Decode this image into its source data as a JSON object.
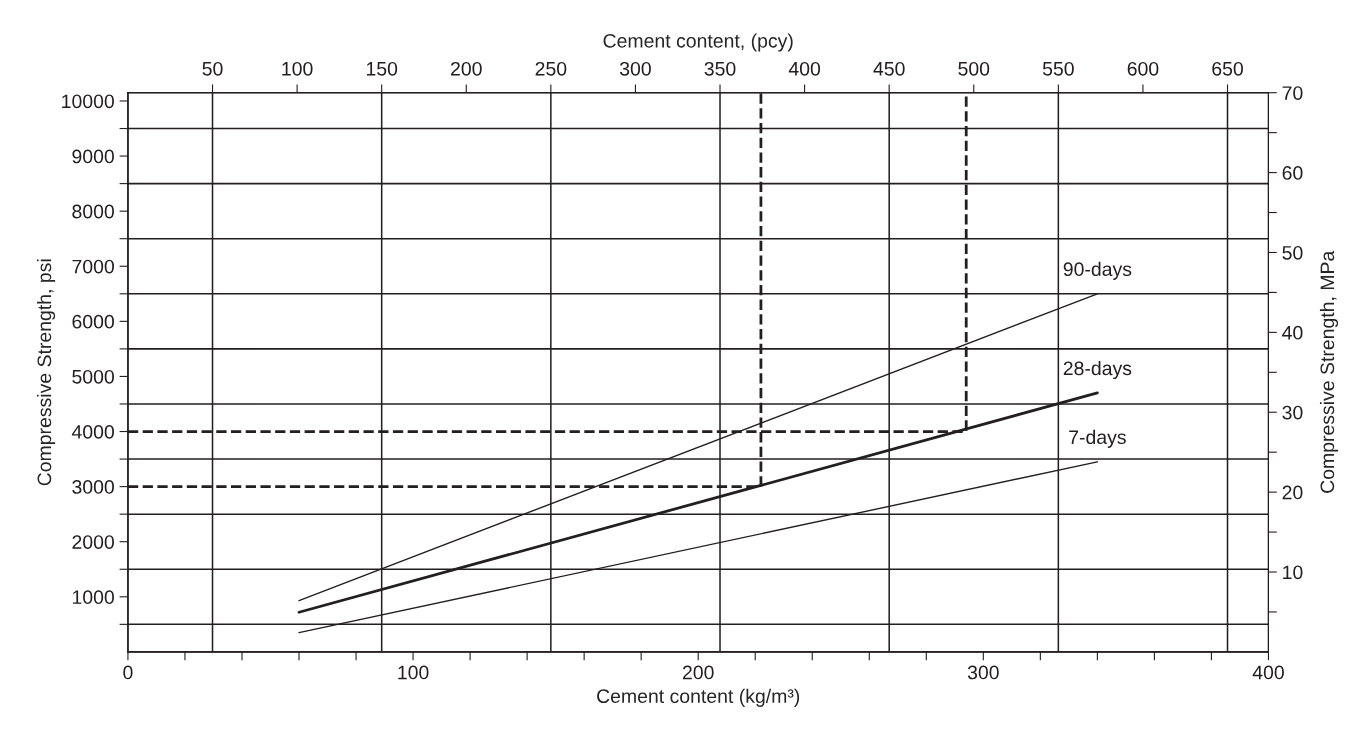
{
  "chart_data": {
    "type": "line",
    "xlabel": "Cement content (kg/m³)",
    "ylabel": "Compressive Strength, psi",
    "y2label": "Compressive Strength, MPa",
    "x2label": "Cement content, (pcy)",
    "series": [
      {
        "name": "90-days",
        "color": "#231f20",
        "x": [
          60,
          340
        ],
        "values": [
          930,
          6500
        ]
      },
      {
        "name": "28-days",
        "color": "#231f20",
        "x": [
          60,
          340
        ],
        "values": [
          720,
          4700
        ]
      },
      {
        "name": "7-days",
        "color": "#231f20",
        "x": [
          60,
          340
        ],
        "values": [
          350,
          3450
        ]
      },
      {
        "color": "#231f20",
        "line_style": "dashed",
        "x": [
          0,
          222,
          222
        ],
        "values": [
          3000,
          3000,
          10150
        ]
      },
      {
        "color": "#231f20",
        "line_style": "dashed",
        "x": [
          0,
          294,
          294
        ],
        "values": [
          4000,
          4000,
          10150
        ]
      }
    ],
    "xlim": [
      0,
      400
    ],
    "xticks": [
      0,
      {
        "value": 20,
        "label": null
      },
      {
        "value": 40,
        "label": null
      },
      {
        "value": 60,
        "label": null
      },
      {
        "value": 80,
        "label": null
      },
      100,
      {
        "value": 120,
        "label": null
      },
      {
        "value": 140,
        "label": null
      },
      {
        "value": 160,
        "label": null
      },
      {
        "value": 180,
        "label": null
      },
      200,
      {
        "value": 220,
        "label": null
      },
      {
        "value": 240,
        "label": null
      },
      {
        "value": 260,
        "label": null
      },
      {
        "value": 280,
        "label": null
      },
      300,
      {
        "value": 320,
        "label": null
      },
      {
        "value": 340,
        "label": null
      },
      {
        "value": 360,
        "label": null
      },
      {
        "value": 380,
        "label": null
      },
      400
    ],
    "ylim": [
      0,
      10150
    ],
    "yticks": [
      {
        "value": 500,
        "label": null
      },
      1000,
      {
        "value": 1500,
        "label": null
      },
      2000,
      {
        "value": 2500,
        "label": null
      },
      3000,
      {
        "value": 3500,
        "label": null
      },
      4000,
      {
        "value": 4500,
        "label": null
      },
      5000,
      {
        "value": 5500,
        "label": null
      },
      6000,
      {
        "value": 6500,
        "label": null
      },
      7000,
      {
        "value": 7500,
        "label": null
      },
      8000,
      {
        "value": 8500,
        "label": null
      },
      9000,
      {
        "value": 9500,
        "label": null
      },
      10000
    ],
    "y2lim": [
      0,
      70
    ],
    "y2ticks": [
      {
        "value": 5,
        "label": null
      },
      10,
      {
        "value": 15,
        "label": null
      },
      20,
      {
        "value": 25,
        "label": null
      },
      30,
      {
        "value": 35,
        "label": null
      },
      40,
      {
        "value": 45,
        "label": null
      },
      50,
      {
        "value": 55,
        "label": null
      },
      60,
      {
        "value": 65,
        "label": null
      },
      70
    ],
    "x2lim": [
      0,
      674.2
    ],
    "x2ticks": [
      50,
      100,
      150,
      200,
      250,
      300,
      350,
      400,
      450,
      500,
      550,
      600,
      650
    ],
    "ref_lines": [
      {
        "axis": "y",
        "value": 500,
        "color": "#231f20"
      },
      {
        "axis": "y",
        "value": 1500,
        "color": "#231f20"
      },
      {
        "axis": "y",
        "value": 2500,
        "color": "#231f20"
      },
      {
        "axis": "y",
        "value": 3500,
        "color": "#231f20"
      },
      {
        "axis": "y",
        "value": 4500,
        "color": "#231f20"
      },
      {
        "axis": "y",
        "value": 5500,
        "color": "#231f20"
      },
      {
        "axis": "y",
        "value": 6500,
        "color": "#231f20"
      },
      {
        "axis": "y",
        "value": 7500,
        "color": "#231f20"
      },
      {
        "axis": "y",
        "value": 8500,
        "color": "#231f20"
      },
      {
        "axis": "y",
        "value": 9500,
        "color": "#231f20"
      },
      {
        "axis": "x2",
        "value": 50,
        "color": "#231f20"
      },
      {
        "axis": "x2",
        "value": 150,
        "color": "#231f20"
      },
      {
        "axis": "x2",
        "value": 250,
        "color": "#231f20"
      },
      {
        "axis": "x2",
        "value": 350,
        "color": "#231f20"
      },
      {
        "axis": "x2",
        "value": 450,
        "color": "#231f20"
      },
      {
        "axis": "x2",
        "value": 550,
        "color": "#231f20"
      },
      {
        "axis": "x2",
        "value": 650,
        "color": "#231f20"
      }
    ],
    "grid": false,
    "legend": false,
    "marker": "none"
  }
}
